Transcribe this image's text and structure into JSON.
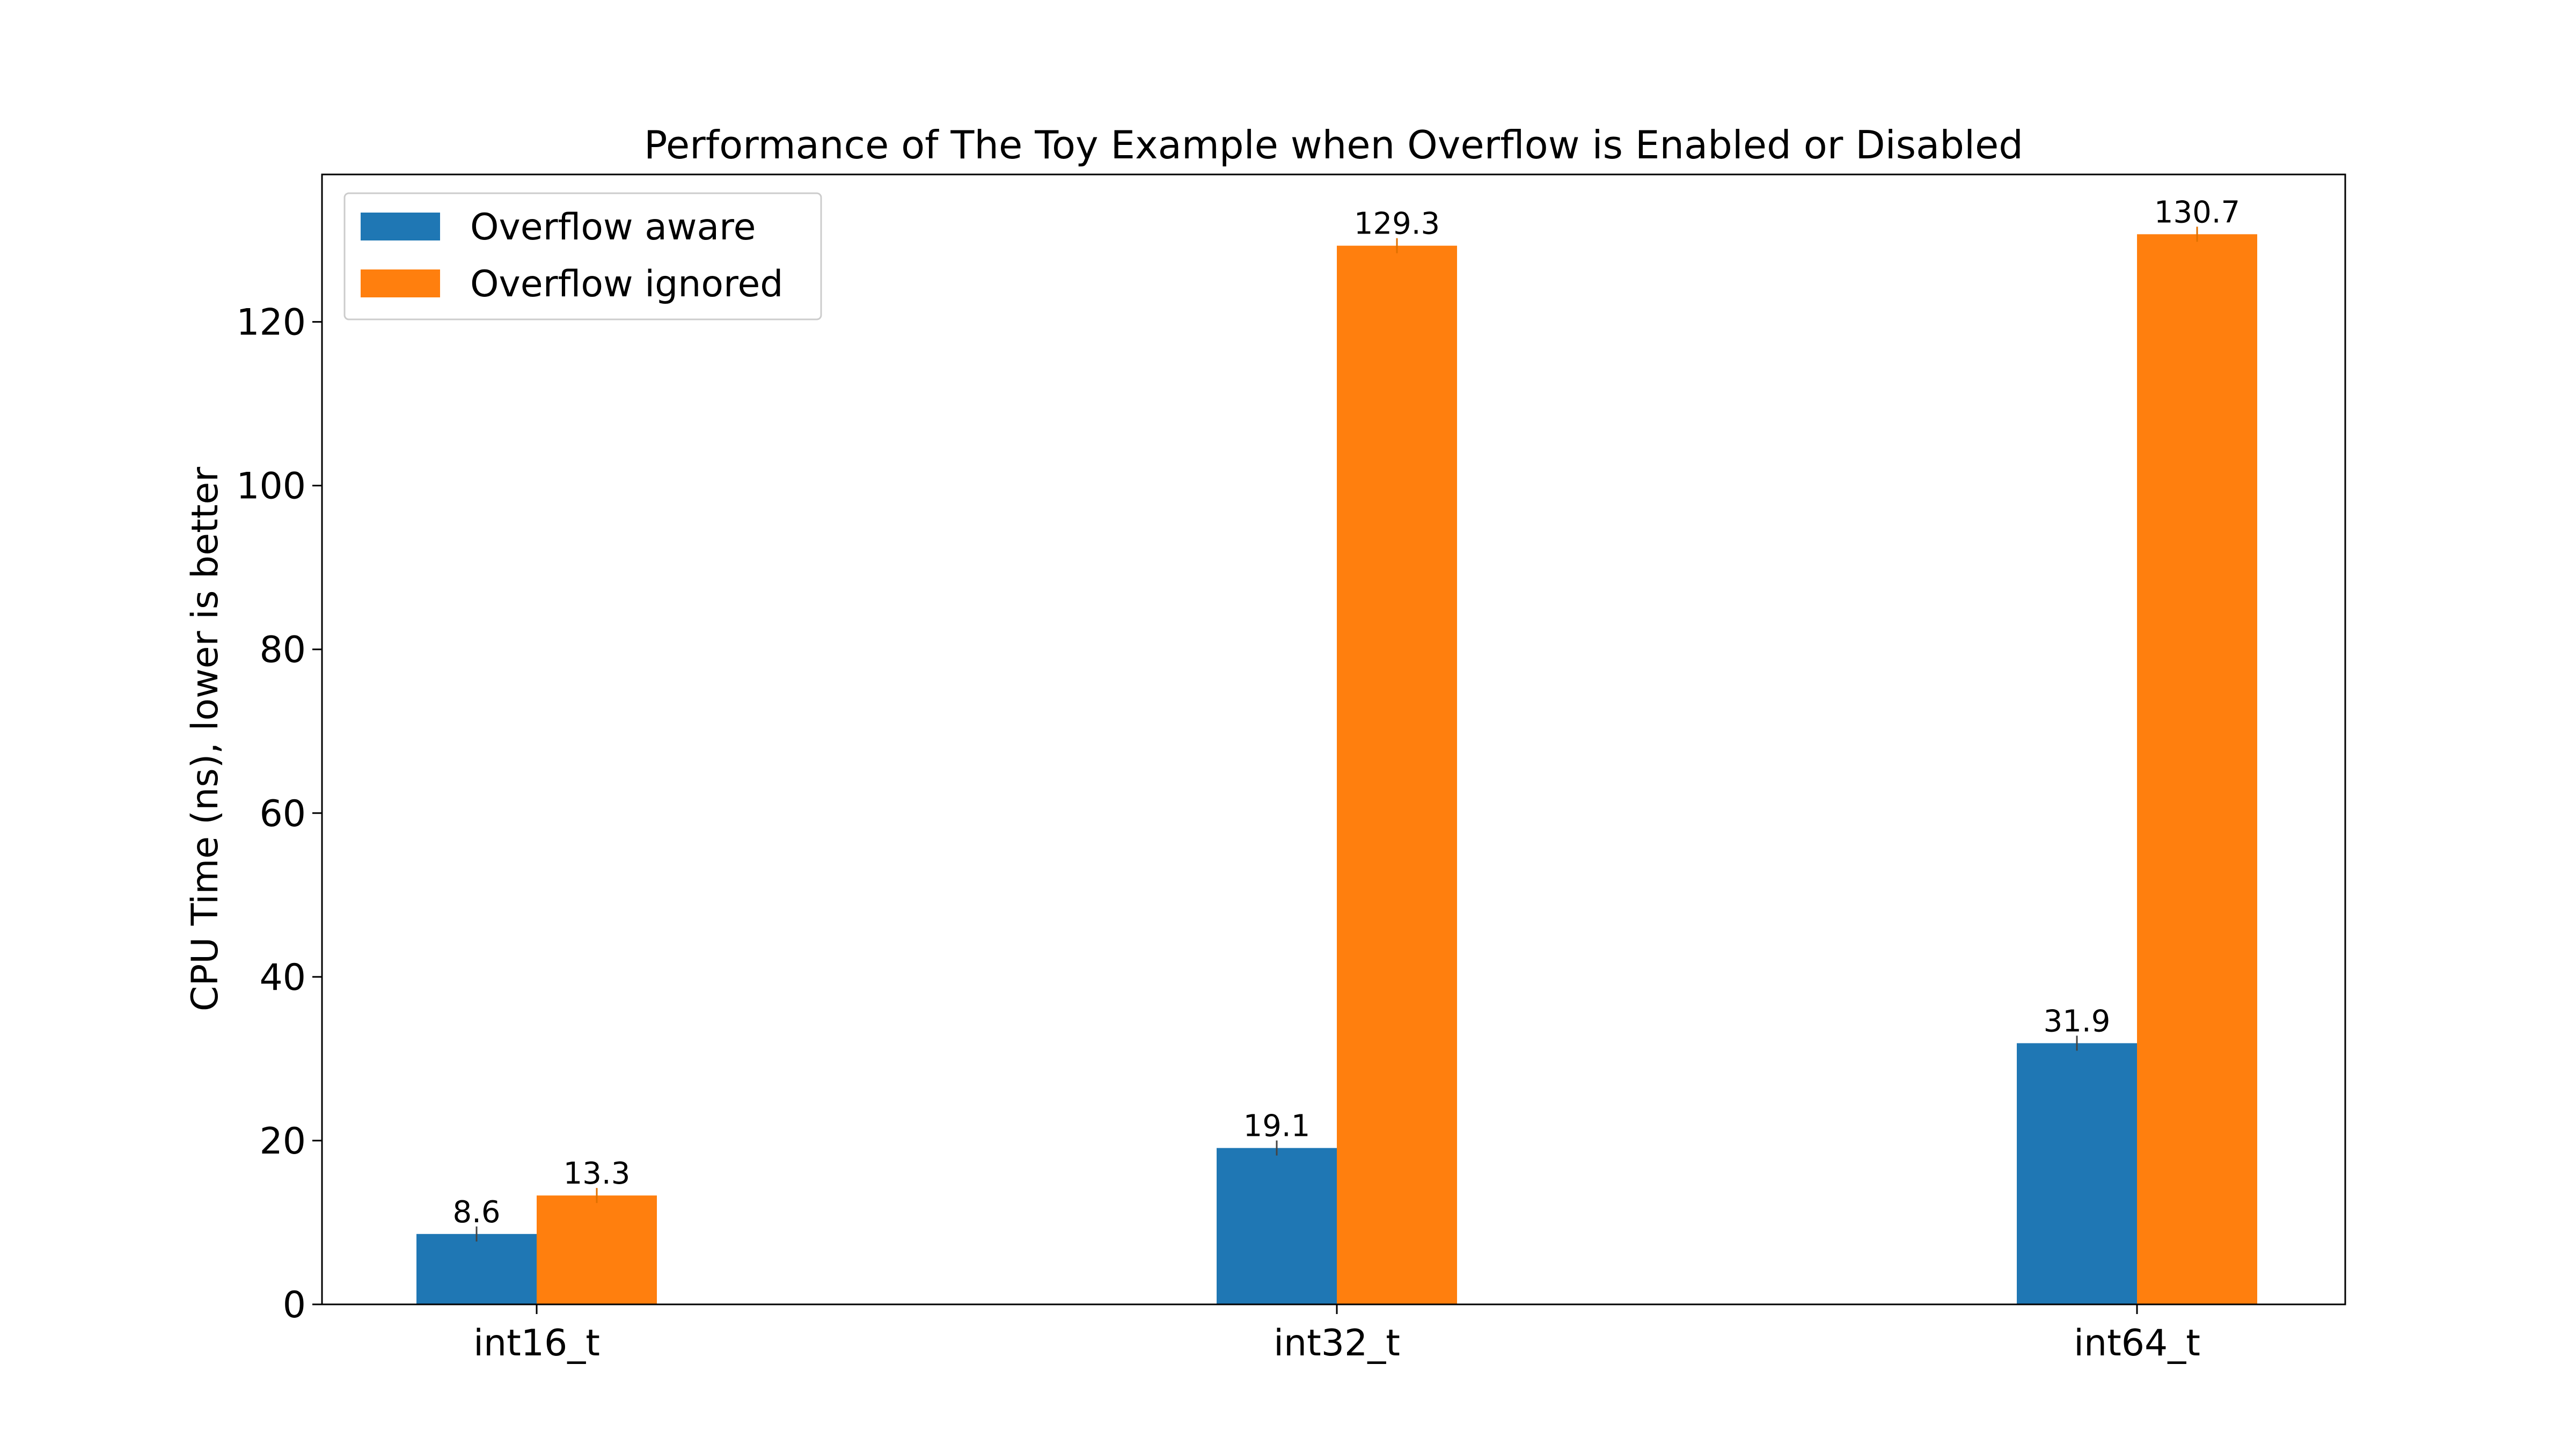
{
  "chart_data": {
    "type": "bar",
    "title": "Performance of The Toy Example when Overflow is Enabled or Disabled",
    "xlabel": "",
    "ylabel": "CPU Time (ns), lower is better",
    "categories": [
      "int16_t",
      "int32_t",
      "int64_t"
    ],
    "series": [
      {
        "name": "Overflow aware",
        "values": [
          8.6,
          19.1,
          31.9
        ],
        "color": "#1f77b4"
      },
      {
        "name": "Overflow ignored",
        "values": [
          13.3,
          129.3,
          130.7
        ],
        "color": "#ff7f0e"
      }
    ],
    "data_labels": [
      [
        "8.6",
        "19.1",
        "31.9"
      ],
      [
        "13.3",
        "129.3",
        "130.7"
      ]
    ],
    "ylim": [
      0,
      138
    ],
    "yticks": [
      0,
      20,
      40,
      60,
      80,
      100,
      120
    ],
    "grid": false,
    "legend_position": "top-left",
    "error_bars": true
  }
}
